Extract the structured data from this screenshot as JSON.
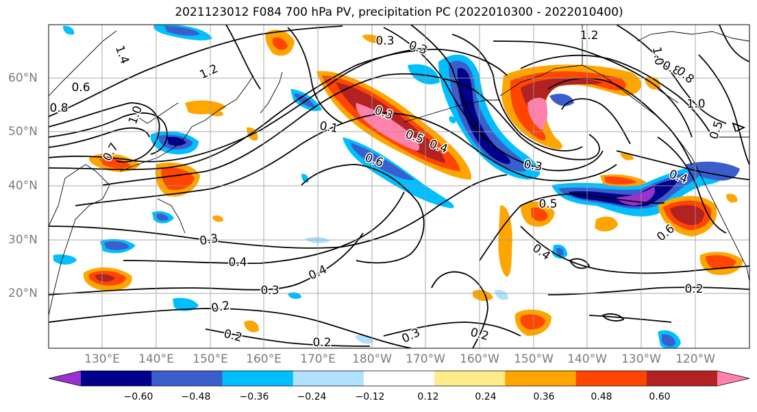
{
  "title": "2021123012 F084 700 hPa PV, precipitation PC (2022010300 - 2022010400)",
  "lat_labels": [
    "60°N",
    "50°N",
    "40°N",
    "30°N",
    "20°N"
  ],
  "lon_labels": [
    "130°E",
    "140°E",
    "150°E",
    "160°E",
    "170°E",
    "180°W",
    "170°W",
    "160°W",
    "150°W",
    "140°W",
    "130°W",
    "120°W"
  ],
  "contour_labels": [
    "1.4",
    "1.2",
    "0.6",
    "0.8",
    "1.0",
    "0.8",
    "0.3",
    "0.1",
    "0.6",
    "0.3",
    "0.5",
    "0.4",
    "1.2",
    "0.7",
    "1.0",
    "0.8",
    "1.0",
    "0.5",
    "0.3",
    "0.5",
    "0.4",
    "0.6",
    "0.3",
    "0.4",
    "0.4",
    "0.3",
    "0.2",
    "0.2",
    "0.2",
    "0.3",
    "0.2",
    "0.2",
    "0.4",
    "0.3"
  ],
  "colorbar": {
    "colors": [
      "#9932cc",
      "#00008b",
      "#3a5fcd",
      "#00bfff",
      "#b0e2ff",
      "#ffffff",
      "#ffec8b",
      "#ffa500",
      "#ff4500",
      "#b22222",
      "#ff82ab"
    ],
    "ticks": [
      "−0.60",
      "−0.48",
      "−0.36",
      "−0.24",
      "−0.12",
      "0.12",
      "0.24",
      "0.36",
      "0.48",
      "0.60"
    ]
  }
}
